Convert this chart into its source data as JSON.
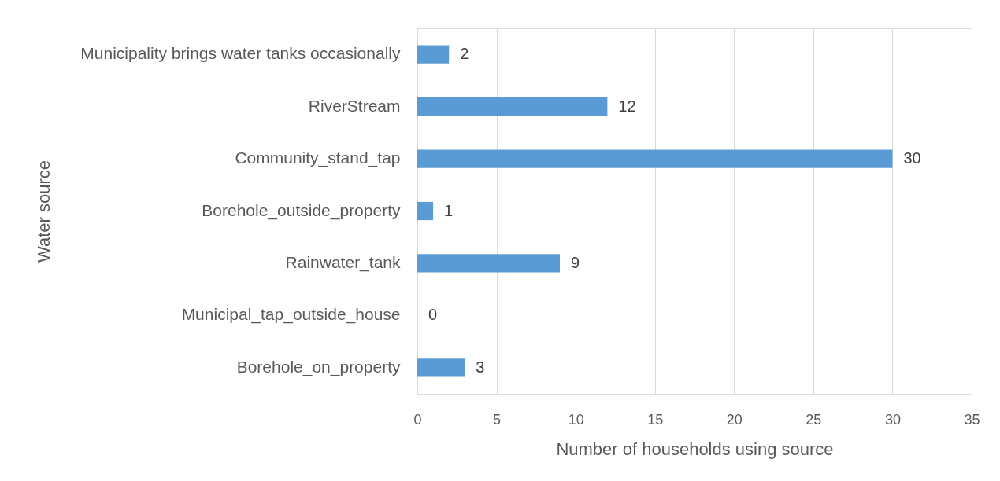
{
  "chart_data": {
    "type": "bar",
    "orientation": "horizontal",
    "categories": [
      "Municipality brings water tanks occasionally",
      "RiverStream",
      "Community_stand_tap",
      "Borehole_outside_property",
      "Rainwater_tank",
      "Municipal_tap_outside_house",
      "Borehole_on_property"
    ],
    "values": [
      2,
      12,
      30,
      1,
      9,
      0,
      3
    ],
    "color": "#5b9bd5",
    "xlabel": "Number of households using source",
    "ylabel": "Water source",
    "xlim": [
      0,
      35
    ],
    "xticks": [
      0,
      5,
      10,
      15,
      20,
      25,
      30,
      35
    ],
    "grid": "x",
    "data_labels": true
  }
}
